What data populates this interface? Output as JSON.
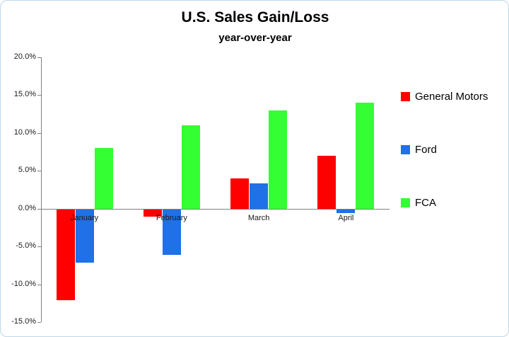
{
  "chart_data": {
    "type": "bar",
    "title": "U.S. Sales Gain/Loss",
    "subtitle": "year-over-year",
    "categories": [
      "January",
      "February",
      "March",
      "April"
    ],
    "series": [
      {
        "name": "General Motors",
        "color": "#ff0000",
        "values": [
          -12.0,
          -1.0,
          4.0,
          7.0
        ]
      },
      {
        "name": "Ford",
        "color": "#2070e8",
        "values": [
          -7.0,
          -6.0,
          3.3,
          -0.5
        ]
      },
      {
        "name": "FCA",
        "color": "#33ff33",
        "values": [
          8.0,
          11.0,
          13.0,
          14.0
        ]
      }
    ],
    "ylim": [
      -15,
      20
    ],
    "ytick_step": 5,
    "ytick_labels": [
      "20.0%",
      "15.0%",
      "10.0%",
      "5.0%",
      "0.0%",
      "-5.0%",
      "-10.0%",
      "-15.0%"
    ],
    "yaxis_format": "percent",
    "grid": false,
    "legend_position": "right",
    "axis_color": "#808080"
  }
}
